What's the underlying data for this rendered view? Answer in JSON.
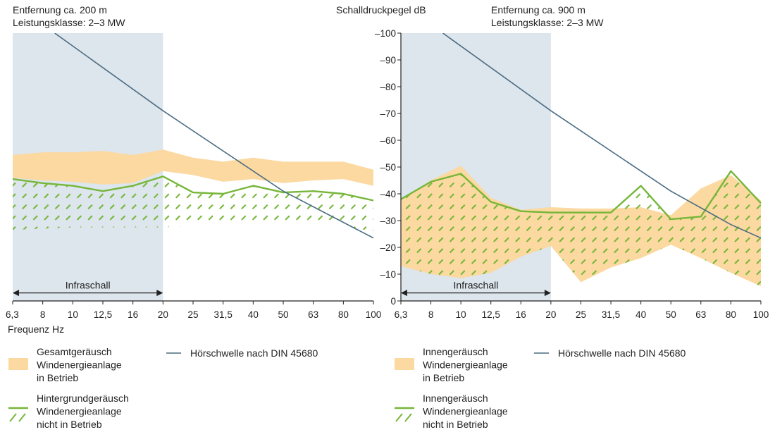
{
  "figure": {
    "y_axis_title": "Schalldruckpegel dB",
    "x_axis_title": "Frequenz Hz"
  },
  "colors": {
    "infrasound_band": "#dde5ed",
    "total_noise_fill": "#fbd9a0",
    "background_noise": "#76b639",
    "threshold_line": "#4a6c82",
    "axis": "#222222"
  },
  "chart_data": [
    {
      "type": "area",
      "panel": "left",
      "header_line1": "Entfernung  ca. 200 m",
      "header_line2": "Leistungsklasse: 2–3 MW",
      "categories": [
        "6,3",
        "8",
        "10",
        "12,5",
        "16",
        "20",
        "25",
        "31,5",
        "40",
        "50",
        "63",
        "80",
        "100"
      ],
      "ylim": [
        0,
        100
      ],
      "infrasound_label": "Infraschall",
      "infrasound_range": [
        "6,3",
        "20"
      ],
      "series": [
        {
          "name": "Gesamtgeräusch Windenergieanlage in Betrieb",
          "kind": "band",
          "upper": [
            54.5,
            55.5,
            55.5,
            56,
            54.5,
            56.5,
            53.5,
            52,
            53.5,
            52,
            52,
            52,
            49
          ],
          "lower": [
            46,
            45,
            44.5,
            43.5,
            44,
            48.5,
            47,
            44.5,
            45.5,
            44,
            45,
            45.5,
            43
          ]
        },
        {
          "name": "Hintergrundgeräusch Windenergieanlage nicht in Betrieb",
          "kind": "hatched",
          "upper": [
            45.5,
            44,
            43,
            41,
            43,
            46.5,
            40.5,
            40,
            43,
            40.5,
            41,
            40,
            37.5
          ],
          "lower": [
            26.5,
            27,
            27.5,
            27.5,
            27.5,
            27.5,
            28,
            28.5,
            28.5,
            29,
            29,
            28,
            26
          ]
        },
        {
          "name": "Hörschwelle nach DIN 45680",
          "kind": "line",
          "points": [
            [
              1.4,
              100
            ],
            [
              5,
              71
            ],
            [
              9,
              41
            ],
            [
              12,
              23.5
            ]
          ]
        }
      ],
      "legend": [
        {
          "kind": "band",
          "lines": [
            "Gesamtgeräusch",
            "Windenergieanlage",
            "in Betrieb"
          ]
        },
        {
          "kind": "line",
          "lines": [
            "Hörschwelle nach DIN 45680"
          ]
        },
        {
          "kind": "hatched",
          "lines": [
            "Hintergrundgeräusch",
            "Windenergieanlage",
            "nicht in Betrieb"
          ]
        }
      ]
    },
    {
      "type": "area",
      "panel": "right",
      "header_line1": "Entfernung ca. 900 m",
      "header_line2": "Leistungsklasse: 2–3 MW",
      "categories": [
        "6,3",
        "8",
        "10",
        "12,5",
        "16",
        "20",
        "25",
        "31,5",
        "40",
        "50",
        "63",
        "80",
        "100"
      ],
      "yticks": [
        "0",
        "10",
        "20",
        "30",
        "40",
        "50",
        "60",
        "70",
        "80",
        "90",
        "100"
      ],
      "ylim": [
        0,
        100
      ],
      "infrasound_label": "Infraschall",
      "infrasound_range": [
        "6,3",
        "20"
      ],
      "series": [
        {
          "name": "Innengeräusch Windenergieanlage in Betrieb",
          "kind": "band",
          "upper": [
            38,
            45,
            50.5,
            38.5,
            34,
            35,
            34.5,
            34.5,
            35,
            32,
            42,
            47,
            37.5
          ],
          "lower": [
            13,
            10,
            8.5,
            10.5,
            16.5,
            20.5,
            7,
            12.5,
            16,
            21,
            16,
            10.5,
            5.5
          ]
        },
        {
          "name": "Innengeräusch Windenergieanlage nicht in Betrieb",
          "kind": "hatched",
          "upper": [
            38,
            44.5,
            47.5,
            37,
            33.5,
            33,
            33,
            33,
            43,
            30.5,
            31.5,
            48.5,
            36.5
          ],
          "lower": [
            13,
            10,
            8.5,
            10.5,
            16.5,
            20.5,
            7,
            12.5,
            16,
            21,
            16,
            10.5,
            5.5
          ]
        },
        {
          "name": "Hörschwelle nach DIN 45680",
          "kind": "line",
          "points": [
            [
              1.4,
              100
            ],
            [
              5,
              71
            ],
            [
              9,
              41
            ],
            [
              11,
              28.5
            ],
            [
              12,
              23.5
            ]
          ]
        }
      ],
      "legend": [
        {
          "kind": "band",
          "lines": [
            "Innengeräusch",
            "Windenergieanlage",
            "in Betrieb"
          ]
        },
        {
          "kind": "line",
          "lines": [
            "Hörschwelle nach DIN 45680"
          ]
        },
        {
          "kind": "hatched",
          "lines": [
            "Innengeräusch",
            "Windenergieanlage",
            "nicht in Betrieb"
          ]
        }
      ]
    }
  ]
}
